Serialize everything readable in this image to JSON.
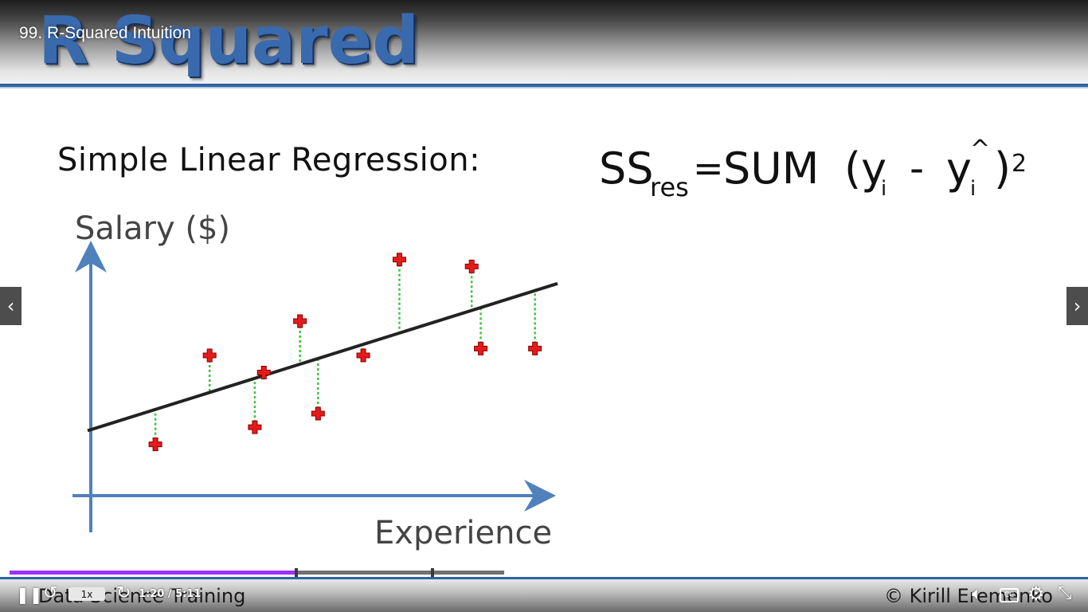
{
  "player": {
    "lesson_title": "99. R-Squared Intuition",
    "speed_label": "1x",
    "time": "1:20 / 5:11",
    "progress": 0.58,
    "chapter_markers": [
      0.58,
      0.855
    ],
    "icons": [
      "pause-icon",
      "rewind-icon",
      "forward-icon",
      "volume-icon",
      "cc-icon",
      "gear-icon",
      "collapse-icon",
      "chevron-left-icon",
      "chevron-right-icon"
    ]
  },
  "slide": {
    "heading": "R Squared",
    "subtitle": "Simple Linear Regression:",
    "ylabel": "Salary ($)",
    "xlabel": "Experience",
    "formula": {
      "ss": "SS",
      "res": "res",
      "equals": "=",
      "sum": "SUM",
      "open": "(y",
      "i1": "i",
      "minus": "-",
      "y2": "y",
      "i2": "i",
      "hat": "^",
      "close": ")",
      "exp": "2"
    },
    "footer_left": "Data Science Training",
    "footer_right": "© Kirill Eremenko"
  },
  "colors": {
    "axis": "#4f81bd",
    "points": "#e51b1b",
    "line": "#222222",
    "residual": "#3cc33c",
    "progress": "#9b30ff",
    "heading": "#3a6aae"
  },
  "chart_data": {
    "type": "scatter",
    "xlabel": "Experience",
    "ylabel": "Salary ($)",
    "points": [
      {
        "x": 1.5,
        "y": 1.5
      },
      {
        "x": 2.7,
        "y": 4.1
      },
      {
        "x": 3.7,
        "y": 2.0
      },
      {
        "x": 3.9,
        "y": 3.6
      },
      {
        "x": 4.7,
        "y": 5.1
      },
      {
        "x": 5.1,
        "y": 2.4
      },
      {
        "x": 6.1,
        "y": 4.1
      },
      {
        "x": 6.9,
        "y": 6.9
      },
      {
        "x": 8.5,
        "y": 6.7
      },
      {
        "x": 8.7,
        "y": 4.3
      },
      {
        "x": 9.9,
        "y": 4.3
      }
    ],
    "regression_line": {
      "x0": 0,
      "y0": 1.9,
      "x1": 10.4,
      "y1": 6.2
    },
    "xlim": [
      0,
      10.4
    ],
    "ylim": [
      0,
      7.5
    ],
    "grid": false,
    "legend": "none"
  }
}
